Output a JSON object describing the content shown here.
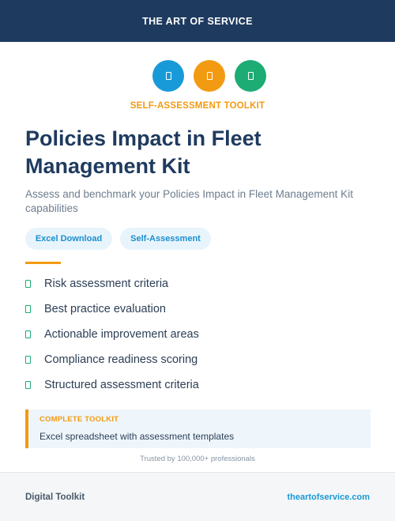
{
  "header": {
    "brand": "THE ART OF SERVICE"
  },
  "icons": [
    "document-icon",
    "spreadsheet-icon",
    "chart-icon"
  ],
  "colors": {
    "navy": "#1e3a5f",
    "blue": "#199ad8",
    "orange": "#f29a12",
    "green": "#1dac74"
  },
  "hero": {
    "kicker": "SELF-ASSESSMENT TOOLKIT",
    "title_line1": "Policies Impact in Fleet",
    "title_line2": "Management Kit",
    "subtitle": "Assess and benchmark your Policies Impact in Fleet Management Kit capabilities"
  },
  "tags": [
    "Excel Download",
    "Self-Assessment"
  ],
  "features": [
    "Risk assessment criteria",
    "Best practice evaluation",
    "Actionable improvement areas",
    "Compliance readiness scoring",
    "Structured assessment criteria"
  ],
  "callout": {
    "label": "COMPLETE TOOLKIT",
    "text": "Excel spreadsheet with assessment templates"
  },
  "trusted": "Trusted by 100,000+ professionals",
  "footer": {
    "left": "Digital Toolkit",
    "right": "theartofservice.com"
  }
}
